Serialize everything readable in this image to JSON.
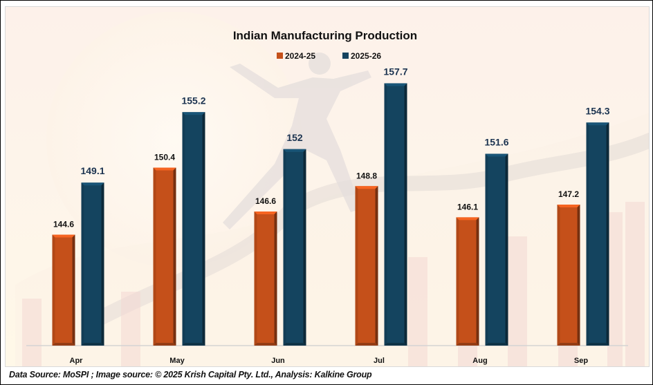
{
  "chart_data": {
    "type": "bar",
    "title": "Indian Manufacturing Production",
    "xlabel": "",
    "ylabel": "",
    "categories": [
      "Apr",
      "May",
      "Jun",
      "Jul",
      "Aug",
      "Sep"
    ],
    "series": [
      {
        "name": "2024-25",
        "color": "#c5501a",
        "label_color": "#111111",
        "values": [
          144.6,
          150.4,
          146.6,
          148.8,
          146.1,
          147.2
        ]
      },
      {
        "name": "2025-26",
        "color": "#14445f",
        "label_color": "#1b3350",
        "values": [
          149.1,
          155.2,
          152,
          157.7,
          151.6,
          154.3
        ]
      }
    ],
    "ylim": [
      135,
      160
    ],
    "grid": false,
    "legend_position": "top-center",
    "data_labels": true
  },
  "footer": {
    "source_text": "Data Source: MoSPI ; Image source: © 2025 Krish Capital Pty. Ltd., Analysis: Kalkine Group"
  }
}
